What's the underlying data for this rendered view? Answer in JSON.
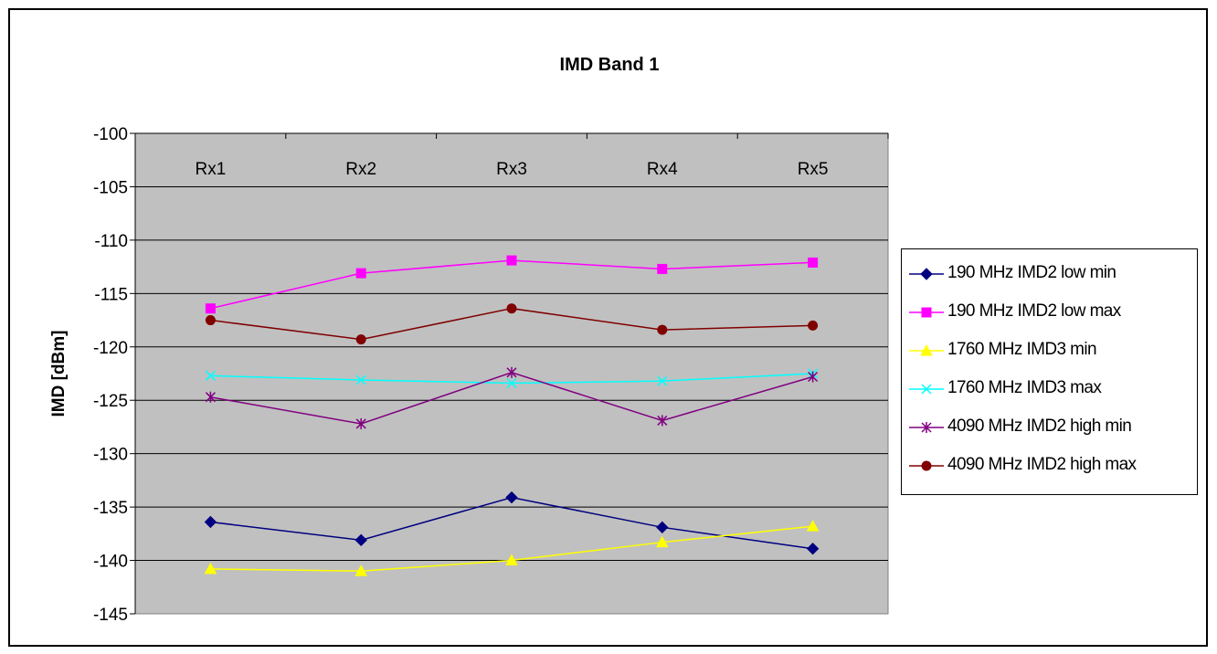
{
  "chart_data": {
    "type": "line",
    "title": "IMD Band 1",
    "xlabel": "",
    "ylabel": "IMD [dBm]",
    "categories": [
      "Rx1",
      "Rx2",
      "Rx3",
      "Rx4",
      "Rx5"
    ],
    "ylim": [
      -145,
      -100
    ],
    "ytick_step": 5,
    "grid": true,
    "plot_background": "#c0c0c0",
    "legend_position": "right",
    "series": [
      {
        "name": "190 MHz IMD2 low min",
        "values": [
          -136.4,
          -138.1,
          -134.1,
          -136.9,
          -138.9
        ],
        "color": "#000080",
        "marker": "diamond"
      },
      {
        "name": "190 MHz IMD2 low max",
        "values": [
          -116.4,
          -113.1,
          -111.9,
          -112.7,
          -112.1
        ],
        "color": "#ff00ff",
        "marker": "square"
      },
      {
        "name": "1760 MHz IMD3 min",
        "values": [
          -140.8,
          -141.0,
          -140.0,
          -138.3,
          -136.8
        ],
        "color": "#ffff00",
        "marker": "triangle"
      },
      {
        "name": "1760 MHz IMD3 max",
        "values": [
          -122.7,
          -123.1,
          -123.4,
          -123.2,
          -122.5
        ],
        "color": "#00ffff",
        "marker": "x"
      },
      {
        "name": "4090 MHz IMD2 high min",
        "values": [
          -124.7,
          -127.2,
          -122.4,
          -126.9,
          -122.8
        ],
        "color": "#800080",
        "marker": "star"
      },
      {
        "name": "4090 MHz IMD2 high max",
        "values": [
          -117.5,
          -119.3,
          -116.4,
          -118.4,
          -118.0
        ],
        "color": "#800000",
        "marker": "circle"
      }
    ]
  }
}
